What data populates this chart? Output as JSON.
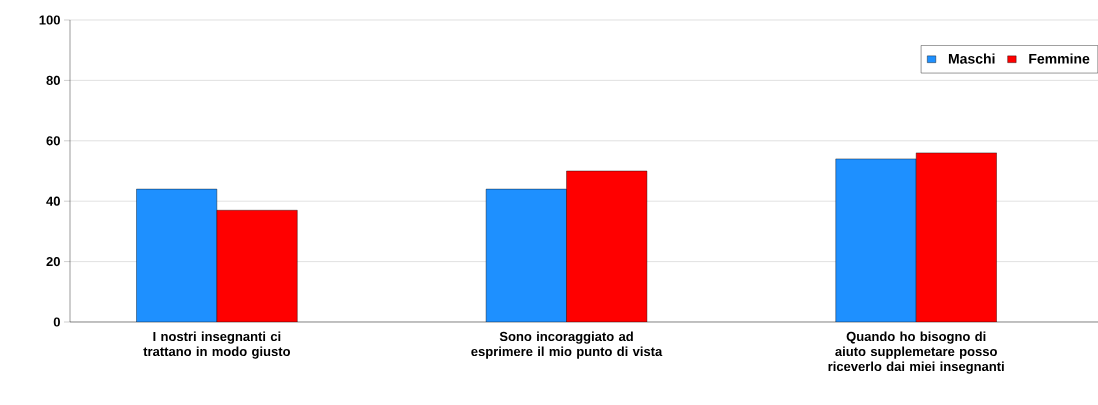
{
  "chart_data": {
    "type": "bar",
    "categories": [
      "I nostri insegnanti ci trattano in modo giusto",
      "Sono incoraggiato ad esprimere il mio punto di vista",
      "Quando ho bisogno di aiuto supplemetare posso riceverlo dai miei insegnanti"
    ],
    "series": [
      {
        "name": "Maschi",
        "color": "#1e90ff",
        "values": [
          44,
          44,
          54
        ]
      },
      {
        "name": "Femmine",
        "color": "#ff0000",
        "values": [
          37,
          50,
          56
        ]
      }
    ],
    "ylim": [
      0,
      100
    ],
    "yticks": [
      0,
      20,
      40,
      60,
      80,
      100
    ],
    "grid": "y",
    "legend": "top right"
  }
}
